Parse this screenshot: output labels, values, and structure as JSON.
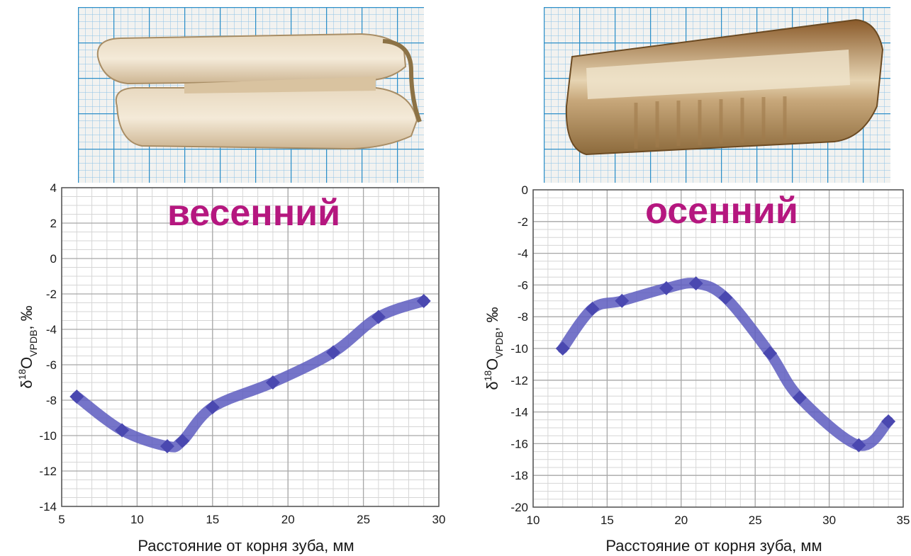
{
  "chart_data": [
    {
      "type": "line",
      "title": "весенний",
      "xlabel": "Расстояние от корня зуба, мм",
      "ylabel": {
        "base": "δ",
        "sup": "18",
        "main": "O",
        "sub": "VPDB",
        "unit": ", ‰"
      },
      "xlim": [
        5,
        30
      ],
      "ylim": [
        -14,
        4
      ],
      "xticks": [
        5,
        10,
        15,
        20,
        25,
        30
      ],
      "yticks": [
        4,
        2,
        0,
        -2,
        -4,
        -6,
        -8,
        -10,
        -12,
        -14
      ],
      "grid": true,
      "series": [
        {
          "x": [
            6,
            9,
            12,
            13,
            15,
            19,
            23,
            26,
            29
          ],
          "y": [
            -7.8,
            -9.7,
            -10.6,
            -10.3,
            -8.4,
            -7.0,
            -5.3,
            -3.3,
            -2.4
          ]
        }
      ]
    },
    {
      "type": "line",
      "title": "осенний",
      "xlabel": "Расстояние от корня зуба, мм",
      "ylabel": {
        "base": "δ",
        "sup": "18",
        "main": "O",
        "sub": "VPDB",
        "unit": ", ‰"
      },
      "xlim": [
        10,
        35
      ],
      "ylim": [
        -20,
        0
      ],
      "xticks": [
        10,
        15,
        20,
        25,
        30,
        35
      ],
      "yticks": [
        0,
        -2,
        -4,
        -6,
        -8,
        -10,
        -12,
        -14,
        -16,
        -18,
        -20
      ],
      "grid": true,
      "series": [
        {
          "x": [
            12,
            14,
            16,
            19,
            21,
            23,
            26,
            28,
            32,
            34
          ],
          "y": [
            -10.0,
            -7.5,
            -7.0,
            -6.2,
            -5.9,
            -6.8,
            -10.3,
            -13.1,
            -16.1,
            -14.6
          ]
        }
      ]
    }
  ],
  "colors": {
    "line": "#5d5cc0",
    "marker": "#4a48b0",
    "title": "#b5177f",
    "photo_grid": "#2d8fc9"
  }
}
